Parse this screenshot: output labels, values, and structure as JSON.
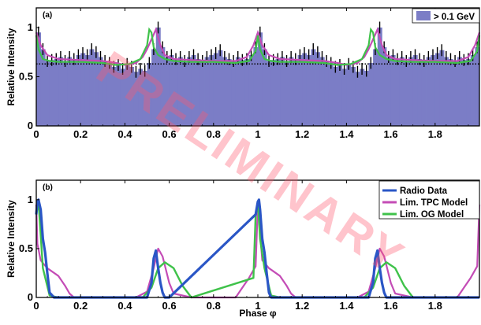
{
  "watermark": "PRELIMINARY",
  "colors": {
    "counts_fill": "#7b7dc6",
    "radio": "#2a56c6",
    "tpc": "#c44cb6",
    "og": "#3fc24a",
    "errorbar": "#000000"
  },
  "chart_data": [
    {
      "panel_label": "(a)",
      "type": "bar",
      "ylabel": "Relative Intensity",
      "xlabel": "",
      "xlim": [
        0,
        2
      ],
      "ylim": [
        0,
        1.2
      ],
      "x_ticks": [
        "0",
        "0.2",
        "0.4",
        "0.6",
        "0.8",
        "1",
        "1.2",
        "1.4",
        "1.6",
        "1.8"
      ],
      "y_ticks": [
        "0",
        "0.5",
        "1"
      ],
      "legend": [
        {
          "label": "> 0.1 GeV",
          "color_key": "counts_fill"
        }
      ],
      "legend_position": "top-right",
      "background_level": 0.63,
      "counts": {
        "name": "> 0.1 GeV",
        "x": [
          0.0,
          0.02,
          0.04,
          0.06,
          0.08,
          0.1,
          0.12,
          0.14,
          0.16,
          0.18,
          0.2,
          0.22,
          0.24,
          0.26,
          0.28,
          0.3,
          0.32,
          0.34,
          0.36,
          0.38,
          0.4,
          0.42,
          0.44,
          0.46,
          0.48,
          0.5,
          0.52,
          0.54,
          0.56,
          0.58,
          0.6,
          0.62,
          0.64,
          0.66,
          0.68,
          0.7,
          0.72,
          0.74,
          0.76,
          0.78,
          0.8,
          0.82,
          0.84,
          0.86,
          0.88,
          0.9,
          0.92,
          0.94,
          0.96,
          0.98
        ],
        "y": [
          0.95,
          0.78,
          0.66,
          0.67,
          0.68,
          0.7,
          0.66,
          0.7,
          0.68,
          0.72,
          0.74,
          0.72,
          0.78,
          0.75,
          0.7,
          0.66,
          0.64,
          0.6,
          0.62,
          0.58,
          0.63,
          0.6,
          0.55,
          0.58,
          0.56,
          0.64,
          0.78,
          1.0,
          0.8,
          0.7,
          0.72,
          0.68,
          0.7,
          0.66,
          0.7,
          0.72,
          0.68,
          0.66,
          0.7,
          0.72,
          0.74,
          0.77,
          0.7,
          0.68,
          0.66,
          0.7,
          0.67,
          0.68,
          0.72,
          0.8
        ],
        "err": 0.06
      },
      "tpc_model": {
        "name": "Lim. TPC Model",
        "x": [
          0.0,
          0.02,
          0.05,
          0.1,
          0.2,
          0.3,
          0.36,
          0.4,
          0.45,
          0.48,
          0.5,
          0.52,
          0.54,
          0.56,
          0.58,
          0.62,
          0.7,
          0.8,
          0.9,
          0.95,
          0.98,
          1.0
        ],
        "y": [
          0.95,
          0.82,
          0.72,
          0.68,
          0.67,
          0.66,
          0.64,
          0.62,
          0.64,
          0.7,
          0.78,
          0.88,
          0.98,
          0.82,
          0.72,
          0.68,
          0.67,
          0.66,
          0.66,
          0.7,
          0.82,
          0.95
        ]
      },
      "og_model": {
        "name": "Lim. OG Model",
        "x": [
          0.0,
          0.01,
          0.03,
          0.06,
          0.1,
          0.2,
          0.3,
          0.36,
          0.42,
          0.47,
          0.5,
          0.51,
          0.52,
          0.53,
          0.55,
          0.58,
          0.62,
          0.7,
          0.8,
          0.9,
          0.96,
          0.99,
          1.0
        ],
        "y": [
          0.92,
          0.78,
          0.68,
          0.66,
          0.65,
          0.65,
          0.64,
          0.62,
          0.63,
          0.68,
          0.82,
          0.98,
          0.95,
          0.8,
          0.72,
          0.68,
          0.66,
          0.65,
          0.65,
          0.64,
          0.66,
          0.76,
          0.92
        ]
      }
    },
    {
      "panel_label": "(b)",
      "type": "line",
      "ylabel": "Relative Intensity",
      "xlabel": "Phase φ",
      "xlim": [
        0,
        2
      ],
      "ylim": [
        0,
        1.2
      ],
      "x_ticks": [
        "0",
        "0.2",
        "0.4",
        "0.6",
        "0.8",
        "1",
        "1.2",
        "1.4",
        "1.6",
        "1.8"
      ],
      "y_ticks": [
        "0",
        "0.5",
        "1"
      ],
      "legend_position": "top-right",
      "series": [
        {
          "name": "Radio Data",
          "color_key": "radio",
          "x": [
            0.0,
            0.005,
            0.01,
            0.02,
            0.03,
            0.04,
            0.05,
            0.06,
            0.08,
            0.5,
            0.52,
            0.53,
            0.54,
            0.55,
            0.56,
            0.57,
            0.58,
            0.6,
            0.99,
            1.0,
            1.005,
            1.01,
            1.02,
            1.03,
            1.04,
            1.05,
            1.06,
            1.08,
            1.5,
            1.52,
            1.53,
            1.54,
            1.55,
            1.56,
            1.57,
            1.58,
            1.6,
            2.0
          ],
          "y": [
            0.85,
            0.98,
            1.0,
            0.9,
            0.6,
            0.46,
            0.25,
            0.05,
            0.0,
            0.0,
            0.15,
            0.4,
            0.48,
            0.3,
            0.15,
            0.05,
            0.0,
            0.0,
            0.85,
            0.98,
            1.0,
            0.9,
            0.6,
            0.46,
            0.25,
            0.05,
            0.0,
            0.0,
            0.0,
            0.15,
            0.4,
            0.48,
            0.3,
            0.15,
            0.05,
            0.0,
            0.0,
            0.0
          ]
        },
        {
          "name": "Lim. TPC Model",
          "color_key": "tpc",
          "x": [
            0.0,
            0.005,
            0.02,
            0.05,
            0.1,
            0.13,
            0.15,
            0.17,
            0.2,
            0.45,
            0.5,
            0.53,
            0.55,
            0.57,
            0.6,
            0.62,
            0.7,
            0.9,
            0.93,
            0.96,
            0.99,
            1.0,
            1.02,
            1.05,
            1.1,
            1.13,
            1.15,
            1.17,
            1.2,
            1.45,
            1.5,
            1.53,
            1.55,
            1.57,
            1.6,
            1.62,
            1.7,
            1.9,
            1.93,
            1.96,
            1.99,
            2.0
          ],
          "y": [
            0.95,
            0.55,
            0.38,
            0.3,
            0.22,
            0.12,
            0.04,
            0.0,
            0.0,
            0.0,
            0.06,
            0.3,
            0.5,
            0.42,
            0.15,
            0.04,
            0.0,
            0.0,
            0.1,
            0.2,
            0.32,
            0.95,
            0.38,
            0.3,
            0.22,
            0.12,
            0.04,
            0.0,
            0.0,
            0.0,
            0.06,
            0.3,
            0.5,
            0.42,
            0.15,
            0.04,
            0.0,
            0.0,
            0.1,
            0.2,
            0.32,
            0.95
          ]
        },
        {
          "name": "Lim. OG Model",
          "color_key": "og",
          "x": [
            0.0,
            0.01,
            0.03,
            0.06,
            0.1,
            0.48,
            0.52,
            0.55,
            0.58,
            0.62,
            0.66,
            0.7,
            0.98,
            0.99,
            1.0,
            1.01,
            1.03,
            1.06,
            1.1,
            1.48,
            1.52,
            1.55,
            1.58,
            1.62,
            1.66,
            1.7,
            2.0
          ],
          "y": [
            0.85,
            0.98,
            0.3,
            0.02,
            0.0,
            0.0,
            0.1,
            0.3,
            0.36,
            0.3,
            0.12,
            0.0,
            0.2,
            0.85,
            0.98,
            0.6,
            0.3,
            0.02,
            0.0,
            0.0,
            0.1,
            0.3,
            0.36,
            0.3,
            0.12,
            0.0,
            0.0
          ]
        }
      ]
    }
  ]
}
